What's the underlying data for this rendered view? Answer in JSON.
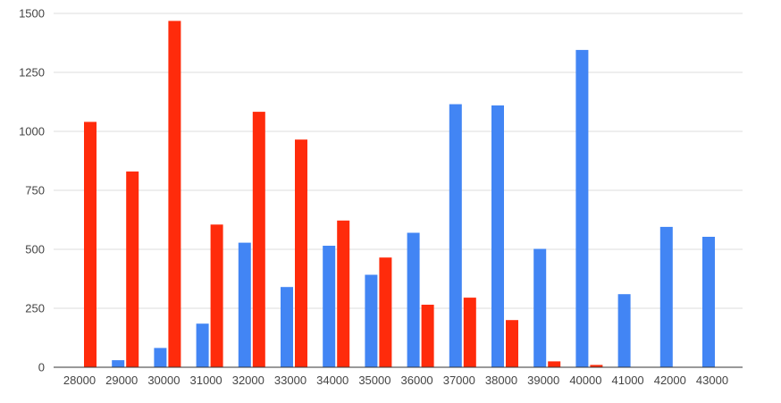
{
  "chart_data": {
    "type": "bar",
    "title": "",
    "xlabel": "",
    "ylabel": "",
    "categories": [
      "28000",
      "29000",
      "30000",
      "31000",
      "32000",
      "33000",
      "34000",
      "35000",
      "36000",
      "37000",
      "38000",
      "39000",
      "40000",
      "41000",
      "42000",
      "43000"
    ],
    "series": [
      {
        "color": "#4285F4",
        "values": [
          0,
          30,
          82,
          185,
          528,
          340,
          515,
          392,
          570,
          1115,
          1110,
          502,
          1345,
          310,
          595,
          553
        ]
      },
      {
        "color": "#FF2B0B",
        "values": [
          1040,
          830,
          1468,
          605,
          1083,
          965,
          622,
          465,
          265,
          295,
          200,
          25,
          10,
          0,
          0,
          0
        ]
      }
    ],
    "ylim": [
      0,
      1500
    ],
    "yticks": [
      0,
      250,
      500,
      750,
      1000,
      1250,
      1500
    ],
    "grid": true,
    "legend": "none"
  }
}
